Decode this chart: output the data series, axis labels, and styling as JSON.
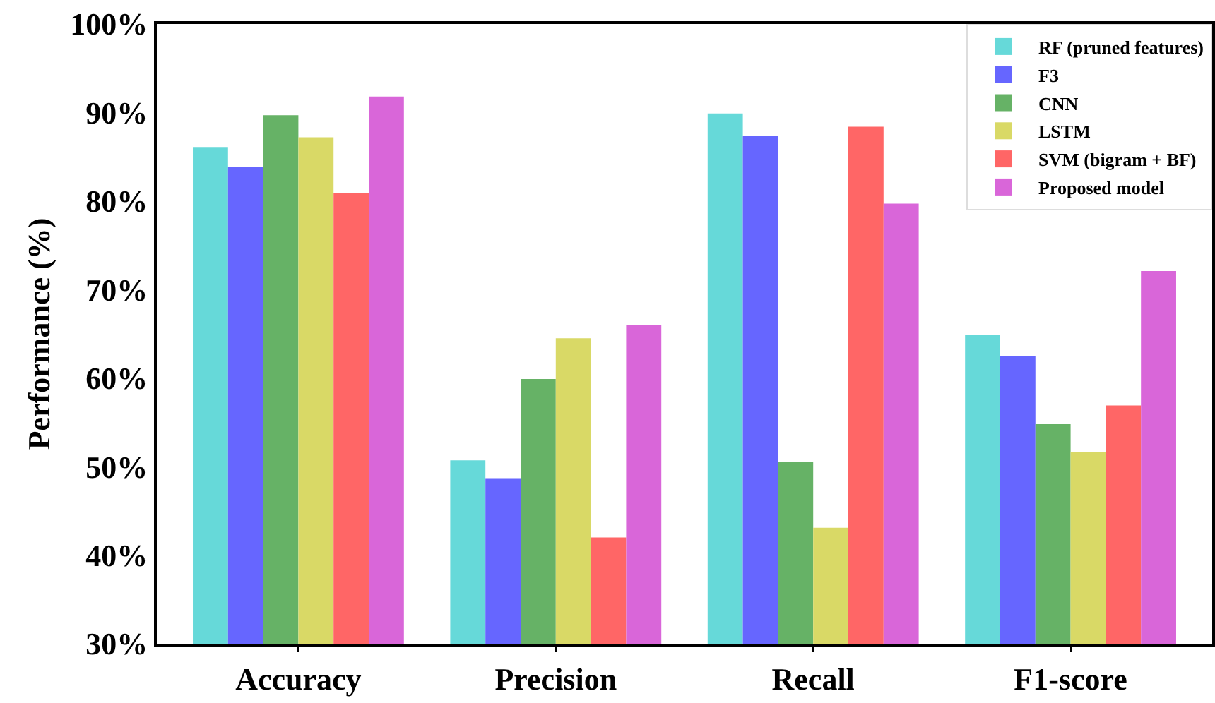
{
  "chart_data": {
    "type": "bar",
    "ylabel": "Performance (%)",
    "categories": [
      "Accuracy",
      "Precision",
      "Recall",
      "F1-score"
    ],
    "series": [
      {
        "name": "RF (pruned features)",
        "color": "#66d9d9",
        "values": [
          86.1,
          50.7,
          89.9,
          64.9
        ]
      },
      {
        "name": "F3",
        "color": "#6666ff",
        "values": [
          83.9,
          48.7,
          87.4,
          62.5
        ]
      },
      {
        "name": "CNN",
        "color": "#66b266",
        "values": [
          89.7,
          59.9,
          50.5,
          54.8
        ]
      },
      {
        "name": "LSTM",
        "color": "#d9d966",
        "values": [
          87.2,
          64.5,
          43.1,
          51.6
        ]
      },
      {
        "name": "SVM (bigram + BF)",
        "color": "#ff6666",
        "values": [
          80.9,
          42.0,
          88.4,
          56.9
        ]
      },
      {
        "name": "Proposed model",
        "color": "#d966d9",
        "values": [
          91.8,
          66.0,
          79.7,
          72.1
        ]
      }
    ],
    "ylim": [
      30,
      100
    ],
    "yticks": [
      {
        "value": 30,
        "label": "30%"
      },
      {
        "value": 40,
        "label": "40%"
      },
      {
        "value": 50,
        "label": "50%"
      },
      {
        "value": 60,
        "label": "60%"
      },
      {
        "value": 70,
        "label": "70%"
      },
      {
        "value": 80,
        "label": "80%"
      },
      {
        "value": 90,
        "label": "90%"
      },
      {
        "value": 100,
        "label": "100%"
      }
    ],
    "grid": false,
    "legend": "top right"
  }
}
